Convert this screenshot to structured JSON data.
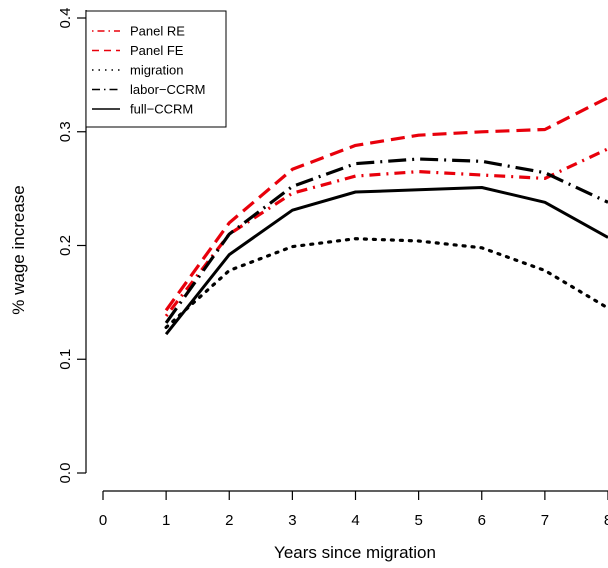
{
  "chart_data": {
    "type": "line",
    "title": "",
    "xlabel": "Years since migration",
    "ylabel": "% wage increase",
    "xlim": [
      0,
      8
    ],
    "ylim": [
      0,
      0.4
    ],
    "x_ticks": [
      "0",
      "1",
      "2",
      "3",
      "4",
      "5",
      "6",
      "7",
      "8"
    ],
    "y_ticks": [
      "0.0",
      "0.1",
      "0.2",
      "0.3",
      "0.4"
    ],
    "grid": false,
    "legend_position": "top-left",
    "x": [
      1,
      2,
      3,
      4,
      5,
      6,
      7,
      8
    ],
    "series": [
      {
        "name": "Panel RE",
        "color": "#e8000b",
        "style": "dashdot",
        "values": [
          0.138,
          0.21,
          0.246,
          0.261,
          0.265,
          0.262,
          0.259,
          0.285
        ]
      },
      {
        "name": "Panel FE",
        "color": "#e8000b",
        "style": "dashed",
        "values": [
          0.143,
          0.22,
          0.267,
          0.288,
          0.297,
          0.3,
          0.302,
          0.33
        ]
      },
      {
        "name": "migration",
        "color": "#000000",
        "style": "dotted",
        "values": [
          0.128,
          0.178,
          0.199,
          0.206,
          0.204,
          0.198,
          0.178,
          0.145
        ]
      },
      {
        "name": "labor−CCRM",
        "color": "#000000",
        "style": "longdashdot",
        "values": [
          0.132,
          0.21,
          0.252,
          0.272,
          0.276,
          0.274,
          0.264,
          0.238
        ]
      },
      {
        "name": "full−CCRM",
        "color": "#000000",
        "style": "solid",
        "values": [
          0.122,
          0.192,
          0.231,
          0.247,
          0.249,
          0.251,
          0.238,
          0.207
        ]
      }
    ]
  }
}
